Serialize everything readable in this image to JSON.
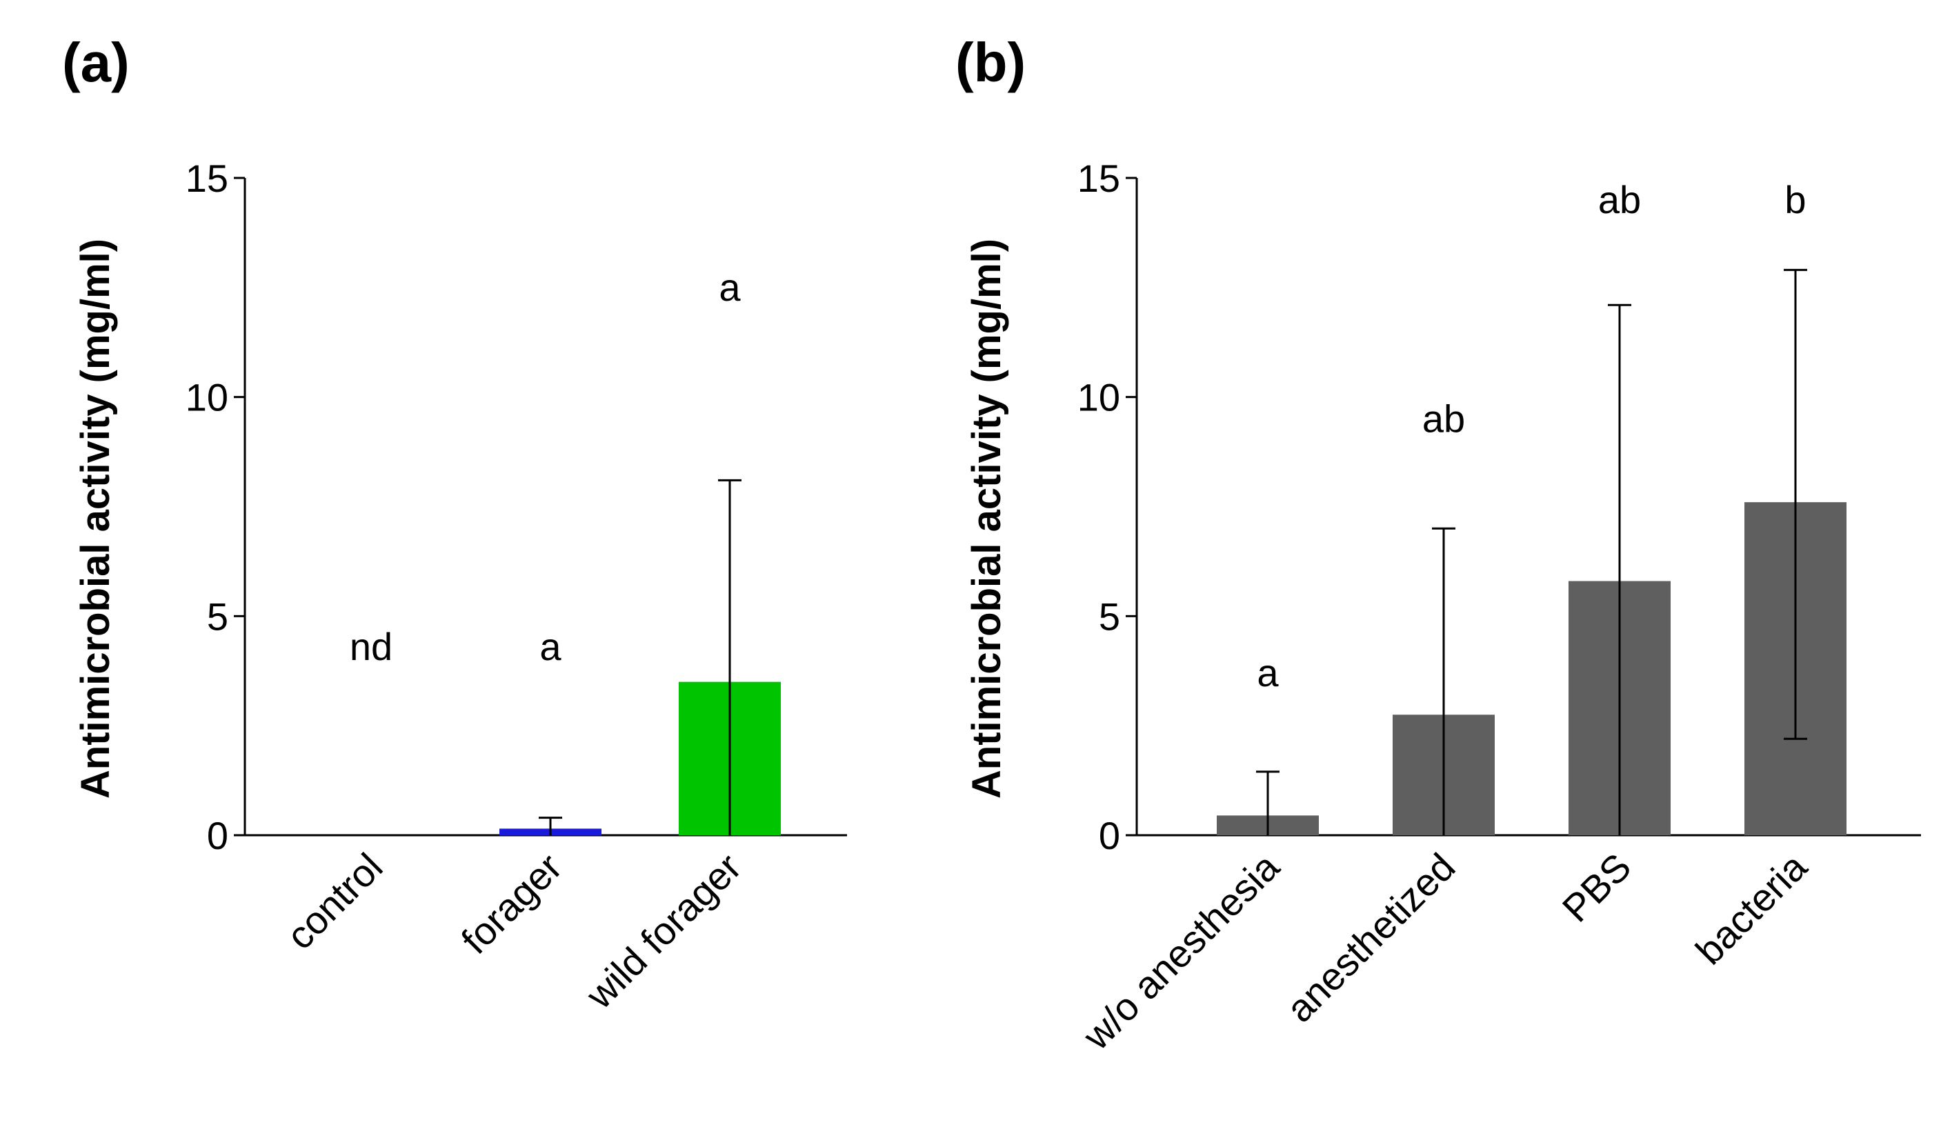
{
  "chart_data": [
    {
      "type": "bar",
      "panel_label": "(a)",
      "ylabel": "Antimicrobial activity (mg/ml)",
      "xlabel": "",
      "ylim": [
        0,
        15
      ],
      "yticks": [
        0,
        5,
        10,
        15
      ],
      "ytick_labels": [
        "0",
        "5",
        "10",
        "15"
      ],
      "categories": [
        "control",
        "forager",
        "wild forager"
      ],
      "values": [
        0,
        0.15,
        3.5
      ],
      "error_upper": [
        0,
        0.4,
        8.1
      ],
      "error_lower": [
        0,
        0,
        0
      ],
      "annotations": [
        "nd",
        "a",
        "a"
      ],
      "annotation_y": [
        4.0,
        4.0,
        12.2
      ],
      "colors": [
        "#ffffff",
        "#1a1adb",
        "#00c400"
      ]
    },
    {
      "type": "bar",
      "panel_label": "(b)",
      "ylabel": "Antimicrobial activity (mg/ml)",
      "xlabel": "",
      "ylim": [
        0,
        15
      ],
      "yticks": [
        0,
        5,
        10,
        15
      ],
      "ytick_labels": [
        "0",
        "5",
        "10",
        "15"
      ],
      "categories": [
        "w/o anesthesia",
        "anesthetized",
        "PBS",
        "bacteria"
      ],
      "values": [
        0.45,
        2.75,
        5.8,
        7.6
      ],
      "error_upper": [
        1.45,
        7.0,
        12.1,
        12.9
      ],
      "error_lower": [
        0,
        0,
        0,
        2.2
      ],
      "annotations": [
        "a",
        "ab",
        "ab",
        "b"
      ],
      "annotation_y": [
        3.4,
        9.2,
        14.2,
        14.2
      ],
      "colors": [
        "#5f5f5f",
        "#5f5f5f",
        "#5f5f5f",
        "#5f5f5f"
      ]
    }
  ]
}
